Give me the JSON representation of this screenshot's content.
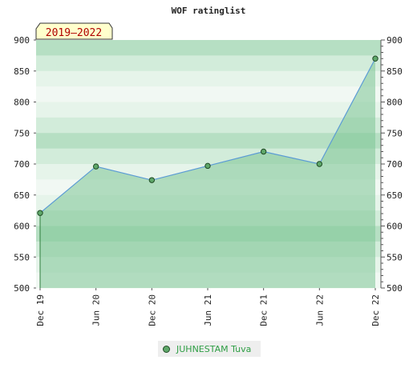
{
  "chart_data": {
    "type": "area",
    "title": "WOF ratinglist",
    "period_badge": "2019–2022",
    "xlabel": "",
    "ylabel": "",
    "categories": [
      "Dec 19",
      "Jun 20",
      "Dec 20",
      "Jun 21",
      "Dec 21",
      "Jun 22",
      "Dec 22"
    ],
    "ylim": [
      500,
      900
    ],
    "yticks": [
      500,
      550,
      600,
      650,
      700,
      750,
      800,
      850,
      900
    ],
    "series": [
      {
        "name": "JUHNESTAM Tuva",
        "values": [
          621,
          696,
          674,
          697,
          720,
          700,
          870
        ],
        "line_color": "#5b9bd5",
        "fill_color": "#7cc594",
        "marker_color": "#5fa86a"
      }
    ],
    "grid": true,
    "legend_position": "bottom-center",
    "background_band_colors": [
      "#b6dfc3",
      "#d2ecda",
      "#e6f4ea",
      "#f1f8f3"
    ]
  }
}
